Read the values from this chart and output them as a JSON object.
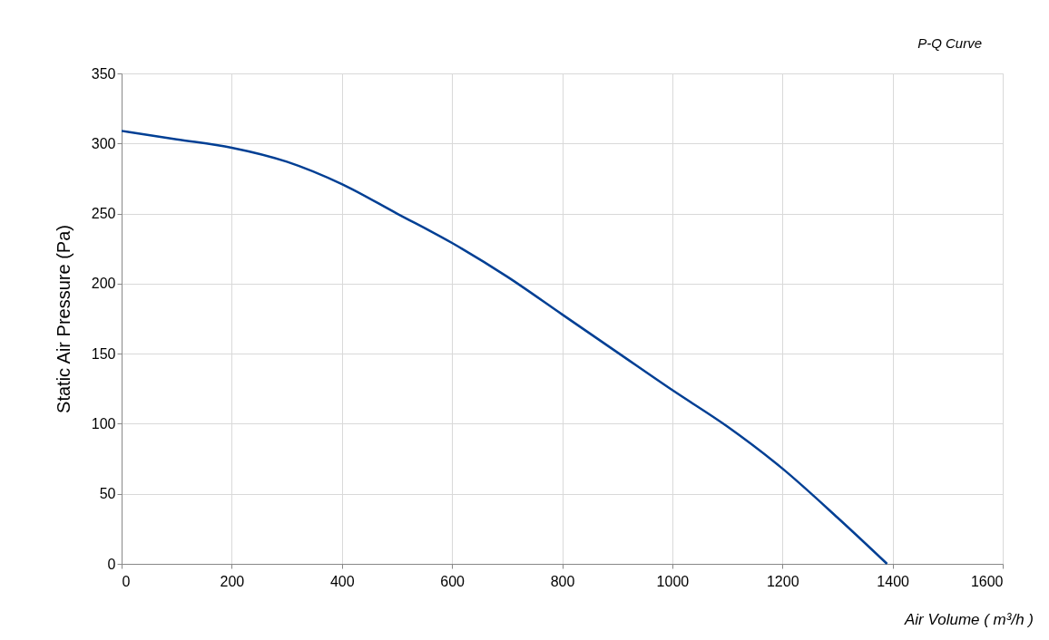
{
  "chart_data": {
    "type": "line",
    "title": "P-Q Curve",
    "xlabel": "Air Volume ( m³/h )",
    "ylabel": "Static Air Pressure  (Pa)",
    "x": [
      0,
      100,
      200,
      300,
      400,
      500,
      600,
      700,
      800,
      900,
      1000,
      1100,
      1200,
      1300,
      1390
    ],
    "series": [
      {
        "color": "#003f94",
        "values": [
          309,
          303,
          297,
          287,
          271,
          250,
          229,
          205,
          178,
          151,
          124,
          98,
          68,
          33,
          0
        ]
      }
    ],
    "xlim": [
      0,
      1600
    ],
    "xticks": [
      0,
      200,
      400,
      600,
      800,
      1000,
      1200,
      1400,
      1600
    ],
    "ylim": [
      0,
      350
    ],
    "yticks": [
      0,
      50,
      100,
      150,
      200,
      250,
      300,
      350
    ],
    "grid": true,
    "marker": "none",
    "line_style": "solid"
  }
}
